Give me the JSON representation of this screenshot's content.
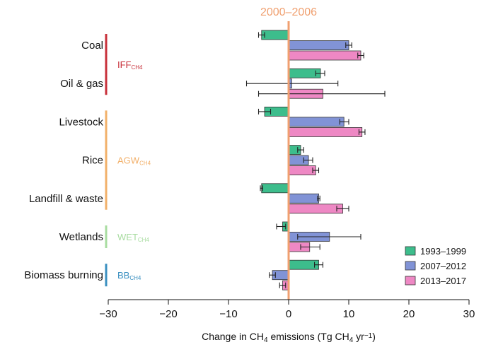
{
  "chart_data": {
    "type": "bar",
    "orientation": "horizontal",
    "title": "",
    "reference_label": "2000–2006",
    "reference_value": 0,
    "xlabel_parts": [
      "Change in CH",
      "4",
      " emissions (Tg CH",
      "4",
      " yr",
      "−1",
      ")"
    ],
    "xlim": [
      -30,
      30
    ],
    "xticks": [
      "−30",
      "−20",
      "−10",
      "0",
      "10",
      "20",
      "30"
    ],
    "categories": [
      "Coal",
      "Oil & gas",
      "Livestock",
      "Rice",
      "Landfill & waste",
      "Wetlands",
      "Biomass burning"
    ],
    "groups": [
      {
        "name": "IFF",
        "sub": "CH4",
        "categories": [
          "Coal",
          "Oil & gas"
        ],
        "color": "#c8303a"
      },
      {
        "name": "AGW",
        "sub": "CH4",
        "categories": [
          "Livestock",
          "Rice",
          "Landfill & waste"
        ],
        "color": "#f2b06a"
      },
      {
        "name": "WET",
        "sub": "CH4",
        "categories": [
          "Wetlands"
        ],
        "color": "#a8dca0"
      },
      {
        "name": "BB",
        "sub": "CH4",
        "categories": [
          "Biomass burning"
        ],
        "color": "#3a8fc0"
      }
    ],
    "series": [
      {
        "name": "1993–1999",
        "color": "#3dbd8c",
        "values": [
          -4.5,
          5.3,
          -4.0,
          2.0,
          -4.5,
          -1.0,
          5.0
        ],
        "err": [
          [
            -5.0,
            -4.0
          ],
          [
            4.5,
            6.0
          ],
          [
            -5.0,
            -3.0
          ],
          [
            1.5,
            2.5
          ],
          [
            -4.7,
            -4.3
          ],
          [
            -2.0,
            -0.5
          ],
          [
            4.3,
            5.7
          ]
        ]
      },
      {
        "name": "2007–2012",
        "color": "#8193d6",
        "values": [
          10.0,
          0.5,
          9.2,
          3.3,
          5.0,
          6.8,
          -2.7
        ],
        "err": [
          [
            9.5,
            10.5
          ],
          [
            -7.0,
            8.2
          ],
          [
            8.5,
            10.0
          ],
          [
            2.5,
            4.0
          ],
          [
            4.8,
            5.2
          ],
          [
            1.5,
            12.0
          ],
          [
            -3.2,
            -2.2
          ]
        ]
      },
      {
        "name": "2013–2017",
        "color": "#ee88c4",
        "values": [
          12.0,
          5.7,
          12.2,
          4.5,
          9.0,
          3.5,
          -1.0
        ],
        "err": [
          [
            11.5,
            12.5
          ],
          [
            -5.0,
            16.0
          ],
          [
            11.7,
            12.7
          ],
          [
            4.0,
            5.0
          ],
          [
            8.0,
            10.0
          ],
          [
            2.0,
            5.2
          ],
          [
            -1.5,
            -0.5
          ]
        ]
      }
    ],
    "legend_position": "bottom-right",
    "grid": false
  }
}
